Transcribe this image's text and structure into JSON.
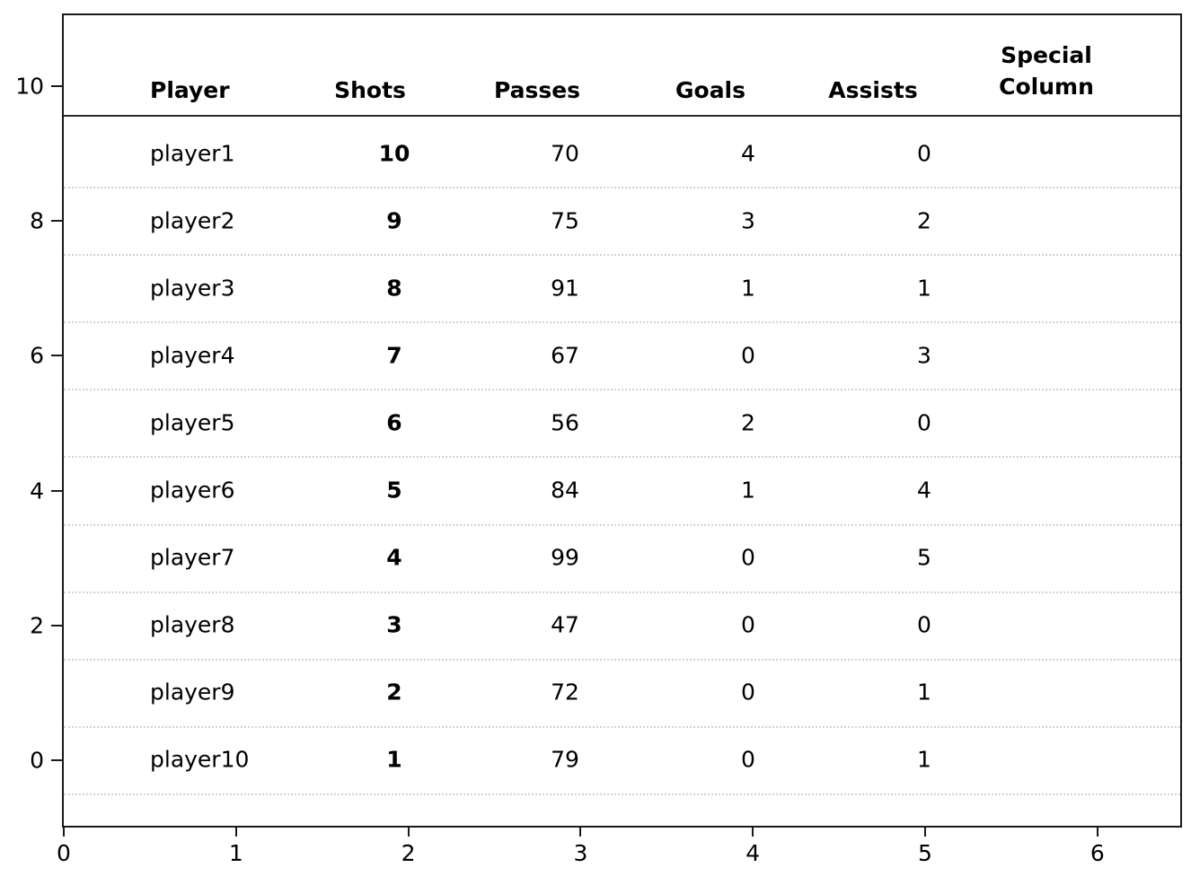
{
  "chart_data": {
    "type": "table",
    "title": "",
    "columns": [
      "Player",
      "Shots",
      "Passes",
      "Goals",
      "Assists",
      "Special Column"
    ],
    "special_header": {
      "line1": "Special",
      "line2": "Column"
    },
    "rows": [
      {
        "player": "player1",
        "shots": 10,
        "passes": 70,
        "goals": 4,
        "assists": 0,
        "special": ""
      },
      {
        "player": "player2",
        "shots": 9,
        "passes": 75,
        "goals": 3,
        "assists": 2,
        "special": ""
      },
      {
        "player": "player3",
        "shots": 8,
        "passes": 91,
        "goals": 1,
        "assists": 1,
        "special": ""
      },
      {
        "player": "player4",
        "shots": 7,
        "passes": 67,
        "goals": 0,
        "assists": 3,
        "special": ""
      },
      {
        "player": "player5",
        "shots": 6,
        "passes": 56,
        "goals": 2,
        "assists": 0,
        "special": ""
      },
      {
        "player": "player6",
        "shots": 5,
        "passes": 84,
        "goals": 1,
        "assists": 4,
        "special": ""
      },
      {
        "player": "player7",
        "shots": 4,
        "passes": 99,
        "goals": 0,
        "assists": 5,
        "special": ""
      },
      {
        "player": "player8",
        "shots": 3,
        "passes": 47,
        "goals": 0,
        "assists": 0,
        "special": ""
      },
      {
        "player": "player9",
        "shots": 2,
        "passes": 72,
        "goals": 0,
        "assists": 1,
        "special": ""
      },
      {
        "player": "player10",
        "shots": 1,
        "passes": 79,
        "goals": 0,
        "assists": 1,
        "special": ""
      }
    ],
    "x_ticks": [
      0,
      1,
      2,
      3,
      4,
      5,
      6
    ],
    "y_ticks": [
      10,
      8,
      6,
      4,
      2,
      0
    ],
    "xlim": [
      0,
      6.5
    ],
    "ylim": [
      -1.05,
      11.05
    ],
    "grid": "dotted horizontal row separators",
    "legend": "none",
    "styling_notes": "header row bold with solid underline; Shots column values bold; Special Column has no values"
  },
  "colors": {
    "background": "#ffffff",
    "text": "#000000",
    "spine": "#1a1a1a",
    "header_rule": "#2b2b2b",
    "row_separator": "#d2d2d2"
  }
}
